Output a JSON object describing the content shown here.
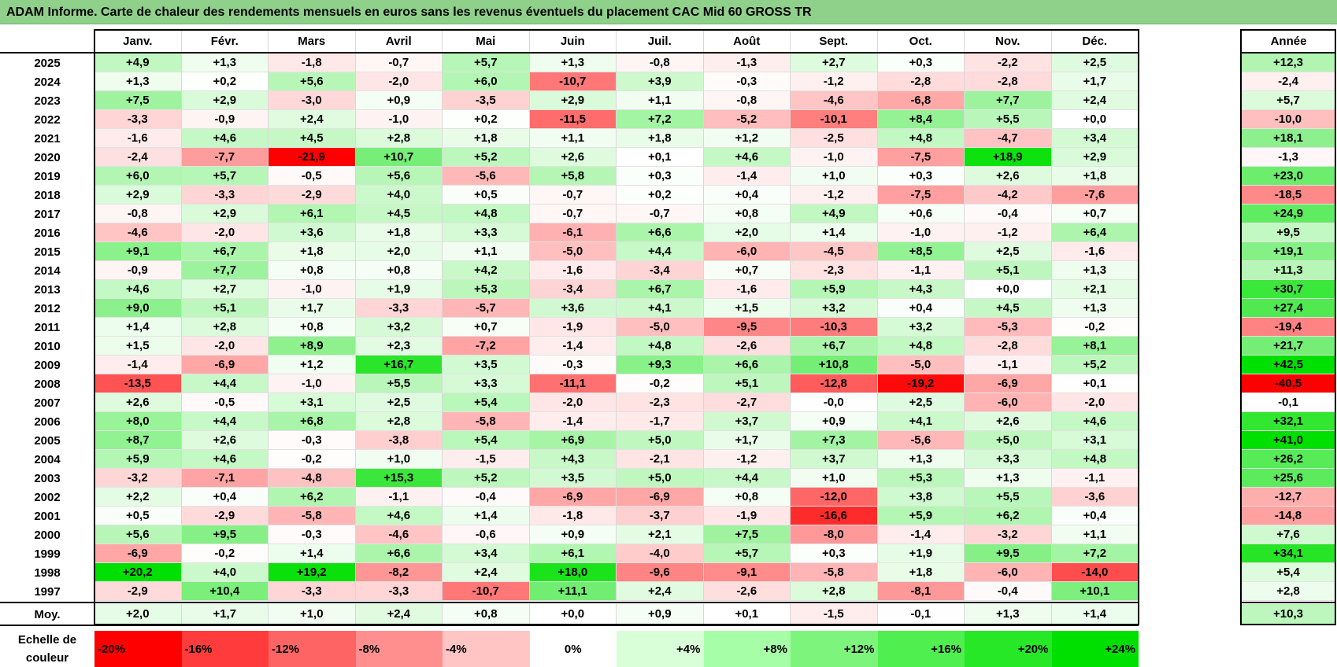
{
  "title": "ADAM Informe. Carte de chaleur des rendements mensuels en euros sans les revenus éventuels du placement CAC Mid 60 GROSS TR",
  "chart_data": {
    "type": "heatmap",
    "title": "ADAM Informe. Carte de chaleur des rendements mensuels en euros sans les revenus éventuels du placement CAC Mid 60 GROSS TR",
    "columns": [
      "Janv.",
      "Févr.",
      "Mars",
      "Avril",
      "Mai",
      "Juin",
      "Juil.",
      "Août",
      "Sept.",
      "Oct.",
      "Nov.",
      "Déc."
    ],
    "annual_label": "Année",
    "rows": [
      {
        "year": "2025",
        "values": [
          "+4,9",
          "+1,3",
          "-1,8",
          "-0,7",
          "+5,7",
          "+1,3",
          "-0,8",
          "-1,3",
          "+2,7",
          "+0,3",
          "-2,2",
          "+2,5"
        ],
        "annual": "+12,3"
      },
      {
        "year": "2024",
        "values": [
          "+1,3",
          "+0,2",
          "+5,6",
          "-2,0",
          "+6,0",
          "-10,7",
          "+3,9",
          "-0,3",
          "-1,2",
          "-2,8",
          "-2,8",
          "+1,7"
        ],
        "annual": "-2,4"
      },
      {
        "year": "2023",
        "values": [
          "+7,5",
          "+2,9",
          "-3,0",
          "+0,9",
          "-3,5",
          "+2,9",
          "+1,1",
          "-0,8",
          "-4,6",
          "-6,8",
          "+7,7",
          "+2,4"
        ],
        "annual": "+5,7"
      },
      {
        "year": "2022",
        "values": [
          "-3,3",
          "-0,9",
          "+2,4",
          "-1,0",
          "+0,2",
          "-11,5",
          "+7,2",
          "-5,2",
          "-10,1",
          "+8,4",
          "+5,5",
          "+0,0"
        ],
        "annual": "-10,0"
      },
      {
        "year": "2021",
        "values": [
          "-1,6",
          "+4,6",
          "+4,5",
          "+2,8",
          "+1,8",
          "+1,1",
          "+1,8",
          "+1,2",
          "-2,5",
          "+4,8",
          "-4,7",
          "+3,4"
        ],
        "annual": "+18,1"
      },
      {
        "year": "2020",
        "values": [
          "-2,4",
          "-7,7",
          "-21,9",
          "+10,7",
          "+5,2",
          "+2,6",
          "+0,1",
          "+4,6",
          "-1,0",
          "-7,5",
          "+18,9",
          "+2,9"
        ],
        "annual": "-1,3"
      },
      {
        "year": "2019",
        "values": [
          "+6,0",
          "+5,7",
          "-0,5",
          "+5,6",
          "-5,6",
          "+5,8",
          "+0,3",
          "-1,4",
          "+1,0",
          "+0,3",
          "+2,6",
          "+1,8"
        ],
        "annual": "+23,0"
      },
      {
        "year": "2018",
        "values": [
          "+2,9",
          "-3,3",
          "-2,9",
          "+4,0",
          "+0,5",
          "-0,7",
          "+0,2",
          "+0,4",
          "-1,2",
          "-7,5",
          "-4,2",
          "-7,6"
        ],
        "annual": "-18,5"
      },
      {
        "year": "2017",
        "values": [
          "-0,8",
          "+2,9",
          "+6,1",
          "+4,5",
          "+4,8",
          "-0,7",
          "-0,7",
          "+0,8",
          "+4,9",
          "+0,6",
          "-0,4",
          "+0,7"
        ],
        "annual": "+24,9"
      },
      {
        "year": "2016",
        "values": [
          "-4,6",
          "-2,0",
          "+3,6",
          "+1,8",
          "+3,3",
          "-6,1",
          "+6,6",
          "+2,0",
          "+1,4",
          "-1,0",
          "-1,2",
          "+6,4"
        ],
        "annual": "+9,5"
      },
      {
        "year": "2015",
        "values": [
          "+9,1",
          "+6,7",
          "+1,8",
          "+2,0",
          "+1,1",
          "-5,0",
          "+4,4",
          "-6,0",
          "-4,5",
          "+8,5",
          "+2,5",
          "-1,6"
        ],
        "annual": "+19,1"
      },
      {
        "year": "2014",
        "values": [
          "-0,9",
          "+7,7",
          "+0,8",
          "+0,8",
          "+4,2",
          "-1,6",
          "-3,4",
          "+0,7",
          "-2,3",
          "-1,1",
          "+5,1",
          "+1,3"
        ],
        "annual": "+11,3"
      },
      {
        "year": "2013",
        "values": [
          "+4,6",
          "+2,7",
          "-1,0",
          "+1,9",
          "+5,3",
          "-3,4",
          "+6,7",
          "-1,6",
          "+5,9",
          "+4,3",
          "+0,0",
          "+2,1"
        ],
        "annual": "+30,7"
      },
      {
        "year": "2012",
        "values": [
          "+9,0",
          "+5,1",
          "+1,7",
          "-3,3",
          "-5,7",
          "+3,6",
          "+4,1",
          "+1,5",
          "+3,2",
          "+0,4",
          "+4,5",
          "+1,3"
        ],
        "annual": "+27,4"
      },
      {
        "year": "2011",
        "values": [
          "+1,4",
          "+2,8",
          "+0,8",
          "+3,2",
          "+0,7",
          "-1,9",
          "-5,0",
          "-9,5",
          "-10,3",
          "+3,2",
          "-5,3",
          "-0,2"
        ],
        "annual": "-19,4"
      },
      {
        "year": "2010",
        "values": [
          "+1,5",
          "-2,0",
          "+8,9",
          "+2,3",
          "-7,2",
          "-1,4",
          "+4,8",
          "-2,6",
          "+6,7",
          "+4,8",
          "-2,8",
          "+8,1"
        ],
        "annual": "+21,7"
      },
      {
        "year": "2009",
        "values": [
          "-1,4",
          "-6,9",
          "+1,2",
          "+16,7",
          "+3,5",
          "-0,3",
          "+9,3",
          "+6,6",
          "+10,8",
          "-5,0",
          "-1,1",
          "+5,2"
        ],
        "annual": "+42,5"
      },
      {
        "year": "2008",
        "values": [
          "-13,5",
          "+4,4",
          "-1,0",
          "+5,5",
          "+3,3",
          "-11,1",
          "-0,2",
          "+5,1",
          "-12,8",
          "-19,2",
          "-6,9",
          "+0,1"
        ],
        "annual": "-40,5"
      },
      {
        "year": "2007",
        "values": [
          "+2,6",
          "-0,5",
          "+3,1",
          "+2,5",
          "+5,4",
          "-2,0",
          "-2,3",
          "-2,7",
          "-0,0",
          "+2,5",
          "-6,0",
          "-2,0"
        ],
        "annual": "-0,1"
      },
      {
        "year": "2006",
        "values": [
          "+8,0",
          "+4,4",
          "+6,8",
          "+2,8",
          "-5,8",
          "-1,4",
          "-1,7",
          "+3,7",
          "+0,9",
          "+4,1",
          "+2,6",
          "+4,6"
        ],
        "annual": "+32,1"
      },
      {
        "year": "2005",
        "values": [
          "+8,7",
          "+2,6",
          "-0,3",
          "-3,8",
          "+5,4",
          "+6,9",
          "+5,0",
          "+1,7",
          "+7,3",
          "-5,6",
          "+5,0",
          "+3,1"
        ],
        "annual": "+41,0"
      },
      {
        "year": "2004",
        "values": [
          "+5,9",
          "+4,6",
          "-0,2",
          "+1,0",
          "-1,5",
          "+4,3",
          "-2,1",
          "-1,2",
          "+3,7",
          "+1,3",
          "+3,3",
          "+4,8"
        ],
        "annual": "+26,2"
      },
      {
        "year": "2003",
        "values": [
          "-3,2",
          "-7,1",
          "-4,8",
          "+15,3",
          "+5,2",
          "+3,5",
          "+5,0",
          "+4,4",
          "+1,0",
          "+5,3",
          "+1,3",
          "-1,1"
        ],
        "annual": "+25,6"
      },
      {
        "year": "2002",
        "values": [
          "+2,2",
          "+0,4",
          "+6,2",
          "-1,1",
          "-0,4",
          "-6,9",
          "-6,9",
          "+0,8",
          "-12,0",
          "+3,8",
          "+5,5",
          "-3,6"
        ],
        "annual": "-12,7"
      },
      {
        "year": "2001",
        "values": [
          "+0,5",
          "-2,9",
          "-5,8",
          "+4,6",
          "+1,4",
          "-1,8",
          "-3,7",
          "-1,9",
          "-16,6",
          "+5,9",
          "+6,2",
          "+0,4"
        ],
        "annual": "-14,8"
      },
      {
        "year": "2000",
        "values": [
          "+5,6",
          "+9,5",
          "-0,3",
          "-4,6",
          "-0,6",
          "+0,9",
          "+2,1",
          "+7,5",
          "-8,0",
          "-1,4",
          "-3,2",
          "+1,1"
        ],
        "annual": "+7,6"
      },
      {
        "year": "1999",
        "values": [
          "-6,9",
          "-0,2",
          "+1,4",
          "+6,6",
          "+3,4",
          "+6,1",
          "-4,0",
          "+5,7",
          "+0,3",
          "+1,9",
          "+9,5",
          "+7,2"
        ],
        "annual": "+34,1"
      },
      {
        "year": "1998",
        "values": [
          "+20,2",
          "+4,0",
          "+19,2",
          "-8,2",
          "+2,4",
          "+18,0",
          "-9,6",
          "-9,1",
          "-5,8",
          "+1,8",
          "-6,0",
          "-14,0"
        ],
        "annual": "+5,4"
      },
      {
        "year": "1997",
        "values": [
          "-2,9",
          "+10,4",
          "-3,3",
          "-3,3",
          "-10,7",
          "+11,1",
          "+2,4",
          "-2,6",
          "+2,8",
          "-8,1",
          "-0,4",
          "+10,1"
        ],
        "annual": "+2,8"
      }
    ],
    "average": {
      "label": "Moy.",
      "values": [
        "+2,0",
        "+1,7",
        "+1,0",
        "+2,4",
        "+0,8",
        "+0,0",
        "+0,9",
        "+0,1",
        "-1,5",
        "-0,1",
        "+1,3",
        "+1,4"
      ],
      "annual": "+10,3"
    },
    "legend": {
      "label_line1": "Echelle de",
      "label_line2": "couleur",
      "items": [
        {
          "label": "-20%",
          "value": -20,
          "color": "#ff0000"
        },
        {
          "label": "-16%",
          "value": -16,
          "color": "#ff3b3b"
        },
        {
          "label": "-12%",
          "value": -12,
          "color": "#ff6464"
        },
        {
          "label": "-8%",
          "value": -8,
          "color": "#ff8f8f"
        },
        {
          "label": "-4%",
          "value": -4,
          "color": "#ffc4c4"
        },
        {
          "label": "0%",
          "value": 0,
          "color": "#ffffff"
        },
        {
          "label": "+4%",
          "value": 4,
          "color": "#d9ffd9"
        },
        {
          "label": "+8%",
          "value": 8,
          "color": "#a6ffa6"
        },
        {
          "label": "+12%",
          "value": 12,
          "color": "#7df57d"
        },
        {
          "label": "+16%",
          "value": 16,
          "color": "#4fef4f"
        },
        {
          "label": "+20%",
          "value": 20,
          "color": "#26e826"
        },
        {
          "label": "+24%",
          "value": 24,
          "color": "#00e000"
        }
      ]
    },
    "colors": {
      "negative_max": "#ff0000",
      "zero": "#ffffff",
      "positive_max": "#00e000"
    }
  }
}
